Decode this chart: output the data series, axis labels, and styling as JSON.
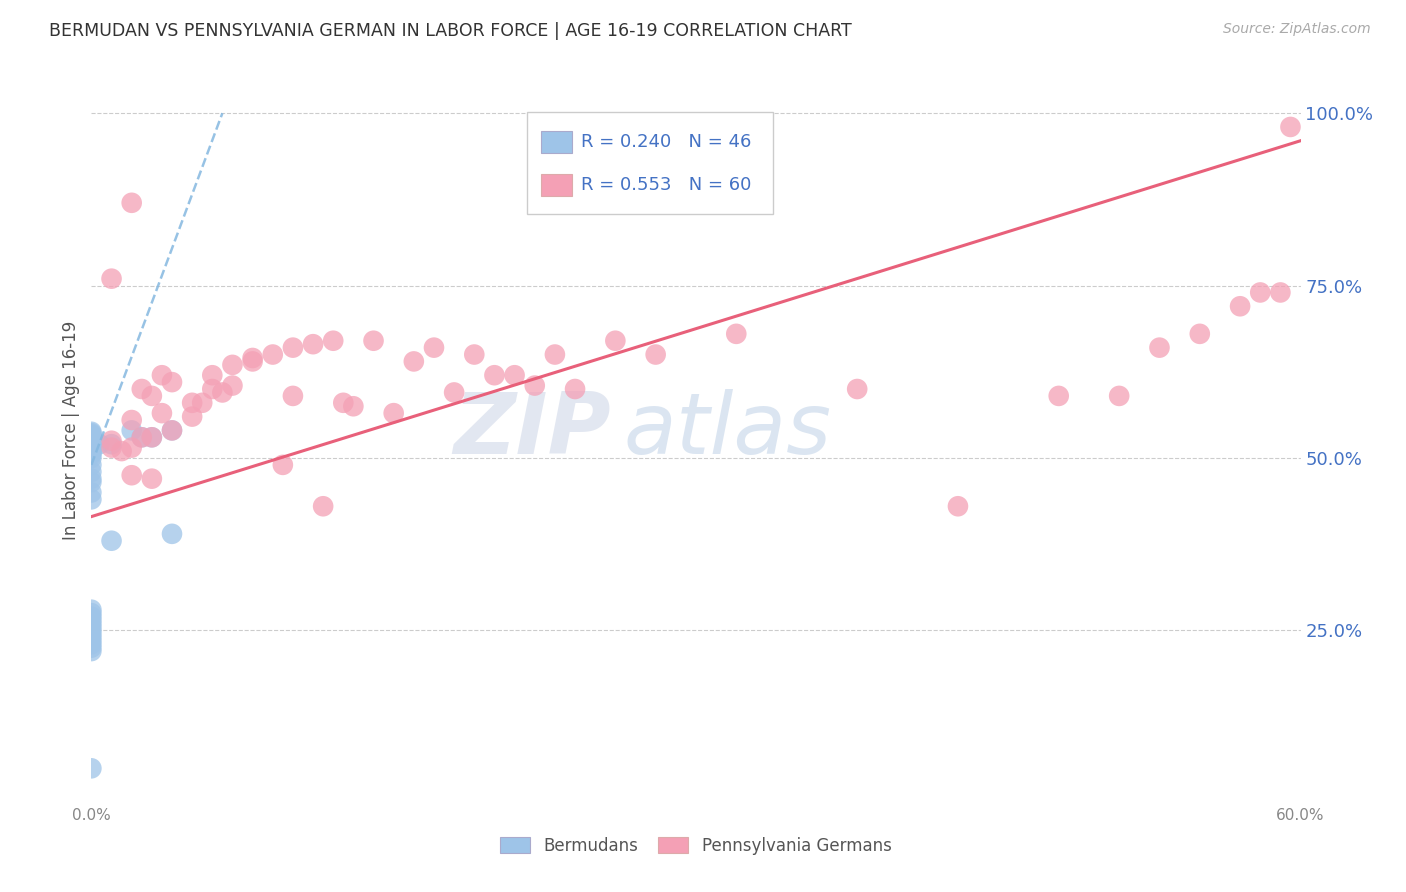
{
  "title": "BERMUDAN VS PENNSYLVANIA GERMAN IN LABOR FORCE | AGE 16-19 CORRELATION CHART",
  "source": "Source: ZipAtlas.com",
  "ylabel": "In Labor Force | Age 16-19",
  "xlim": [
    0.0,
    0.6
  ],
  "ylim": [
    0.0,
    1.08
  ],
  "xticks": [
    0.0,
    0.1,
    0.2,
    0.3,
    0.4,
    0.5,
    0.6
  ],
  "xticklabels": [
    "0.0%",
    "",
    "",
    "",
    "",
    "",
    "60.0%"
  ],
  "yticks_right": [
    0.25,
    0.5,
    0.75,
    1.0
  ],
  "yticklabels_right": [
    "25.0%",
    "50.0%",
    "75.0%",
    "100.0%"
  ],
  "blue_color": "#9ec4e8",
  "pink_color": "#f4a0b5",
  "blue_line_color": "#85b8e0",
  "pink_line_color": "#e8607a",
  "legend_blue_R": "R = 0.240",
  "legend_blue_N": "N = 46",
  "legend_pink_R": "R = 0.553",
  "legend_pink_N": "N = 60",
  "watermark_zip": "ZIP",
  "watermark_atlas": "atlas",
  "background_color": "#ffffff",
  "grid_color": "#cccccc",
  "right_tick_color": "#4472c4",
  "bermudans_x": [
    0.0,
    0.0,
    0.0,
    0.0,
    0.0,
    0.0,
    0.0,
    0.0,
    0.0,
    0.0,
    0.0,
    0.0,
    0.0,
    0.0,
    0.0,
    0.0,
    0.0,
    0.0,
    0.0,
    0.0,
    0.0,
    0.0,
    0.0,
    0.0,
    0.0,
    0.0,
    0.0,
    0.0,
    0.0,
    0.0,
    0.0,
    0.0,
    0.0,
    0.0,
    0.0,
    0.0,
    0.0,
    0.0,
    0.01,
    0.01,
    0.02,
    0.025,
    0.03,
    0.04,
    0.04,
    0.004
  ],
  "bermudans_y": [
    0.05,
    0.44,
    0.45,
    0.465,
    0.47,
    0.48,
    0.49,
    0.5,
    0.505,
    0.508,
    0.51,
    0.512,
    0.514,
    0.516,
    0.518,
    0.52,
    0.522,
    0.524,
    0.526,
    0.528,
    0.53,
    0.532,
    0.534,
    0.536,
    0.538,
    0.27,
    0.275,
    0.28,
    0.22,
    0.225,
    0.23,
    0.235,
    0.24,
    0.245,
    0.25,
    0.255,
    0.26,
    0.265,
    0.52,
    0.38,
    0.54,
    0.53,
    0.53,
    0.39,
    0.54,
    0.52
  ],
  "penn_german_x": [
    0.01,
    0.01,
    0.015,
    0.02,
    0.02,
    0.02,
    0.025,
    0.025,
    0.03,
    0.03,
    0.03,
    0.035,
    0.035,
    0.04,
    0.04,
    0.05,
    0.05,
    0.055,
    0.06,
    0.065,
    0.07,
    0.07,
    0.08,
    0.08,
    0.09,
    0.095,
    0.1,
    0.1,
    0.11,
    0.115,
    0.12,
    0.125,
    0.13,
    0.14,
    0.15,
    0.16,
    0.17,
    0.18,
    0.19,
    0.2,
    0.21,
    0.22,
    0.23,
    0.24,
    0.26,
    0.28,
    0.32,
    0.38,
    0.43,
    0.48,
    0.51,
    0.53,
    0.55,
    0.57,
    0.58,
    0.59,
    0.595,
    0.01,
    0.02,
    0.06
  ],
  "penn_german_y": [
    0.515,
    0.525,
    0.51,
    0.515,
    0.555,
    0.475,
    0.6,
    0.53,
    0.59,
    0.53,
    0.47,
    0.62,
    0.565,
    0.54,
    0.61,
    0.56,
    0.58,
    0.58,
    0.62,
    0.595,
    0.635,
    0.605,
    0.64,
    0.645,
    0.65,
    0.49,
    0.66,
    0.59,
    0.665,
    0.43,
    0.67,
    0.58,
    0.575,
    0.67,
    0.565,
    0.64,
    0.66,
    0.595,
    0.65,
    0.62,
    0.62,
    0.605,
    0.65,
    0.6,
    0.67,
    0.65,
    0.68,
    0.6,
    0.43,
    0.59,
    0.59,
    0.66,
    0.68,
    0.72,
    0.74,
    0.74,
    0.98,
    0.76,
    0.87,
    0.6
  ],
  "blue_trendline_x": [
    0.0,
    0.065
  ],
  "blue_trendline_y": [
    0.49,
    1.0
  ],
  "pink_trendline_x": [
    0.0,
    0.6
  ],
  "pink_trendline_y": [
    0.415,
    0.96
  ]
}
